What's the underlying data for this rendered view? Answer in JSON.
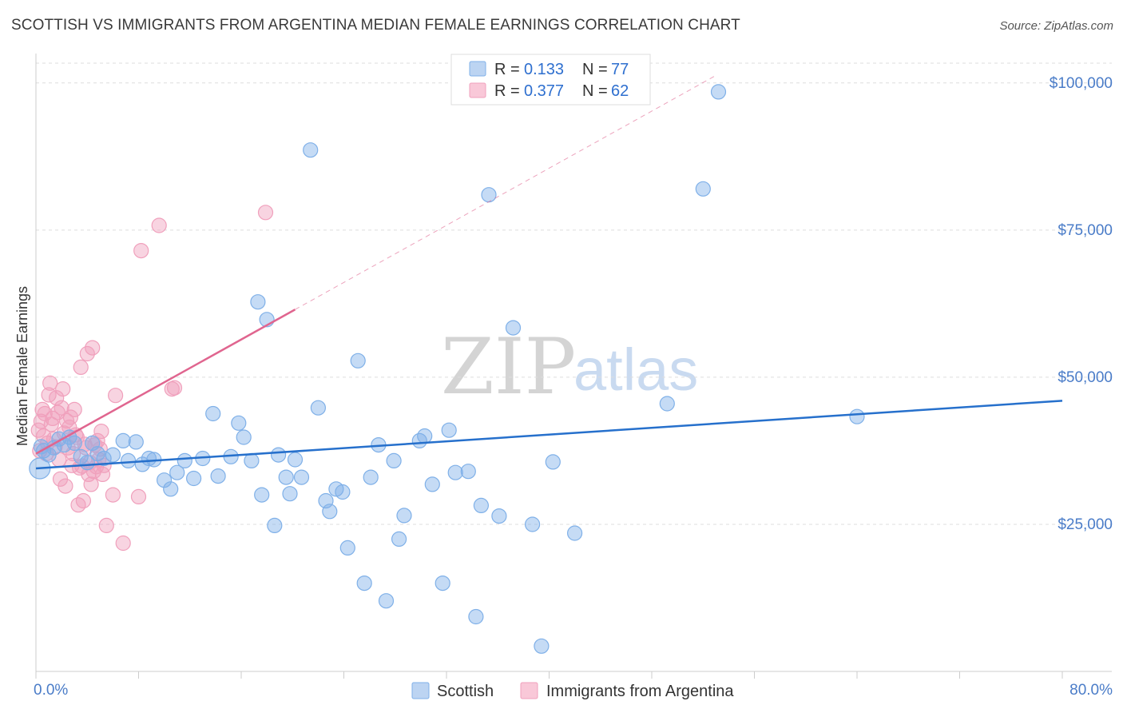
{
  "title": "SCOTTISH VS IMMIGRANTS FROM ARGENTINA MEDIAN FEMALE EARNINGS CORRELATION CHART",
  "source": "Source: ZipAtlas.com",
  "watermark": {
    "zip": "ZIP",
    "atlas": "atlas"
  },
  "colors": {
    "scottish": "#7fb0e8",
    "scottish_line": "#2670cc",
    "argentina": "#f0a0bc",
    "argentina_line": "#e0658f",
    "tick": "#4a7cc8",
    "grid": "#dddddd"
  },
  "legend": {
    "rows": [
      {
        "r_label": "R =",
        "r_value": "0.133",
        "n_label": "N =",
        "n_value": "77"
      },
      {
        "r_label": "R =",
        "r_value": "0.377",
        "n_label": "N =",
        "n_value": "62"
      }
    ]
  },
  "bottom_legend": [
    "Scottish",
    "Immigrants from Argentina"
  ],
  "chart_data": {
    "type": "scatter",
    "title": "SCOTTISH VS IMMIGRANTS FROM ARGENTINA MEDIAN FEMALE EARNINGS CORRELATION CHART",
    "xlabel": "",
    "ylabel": "Median Female Earnings",
    "xlim": [
      0,
      80
    ],
    "ylim": [
      0,
      105000
    ],
    "x_tick_labels": {
      "min": "0.0%",
      "max": "80.0%"
    },
    "y_ticks": [
      {
        "value": 25000,
        "label": "$25,000"
      },
      {
        "value": 50000,
        "label": "$50,000"
      },
      {
        "value": 75000,
        "label": "$75,000"
      },
      {
        "value": 100000,
        "label": "$100,000"
      }
    ],
    "series": [
      {
        "name": "Scottish",
        "r": 0.133,
        "n": 77,
        "trend": {
          "x0": 0,
          "y0": 34500,
          "x1": 80,
          "y1": 46000,
          "dashed_to_x": null
        },
        "points": [
          [
            0.3,
            34500
          ],
          [
            0.6,
            37500
          ],
          [
            1.0,
            36800
          ],
          [
            1.4,
            38000
          ],
          [
            1.8,
            39500
          ],
          [
            2.2,
            38500
          ],
          [
            2.6,
            39800
          ],
          [
            3.0,
            38800
          ],
          [
            3.5,
            36500
          ],
          [
            4.0,
            35500
          ],
          [
            4.4,
            38800
          ],
          [
            4.8,
            37000
          ],
          [
            5.3,
            36200
          ],
          [
            6.0,
            36800
          ],
          [
            6.8,
            39200
          ],
          [
            7.2,
            35800
          ],
          [
            7.8,
            39000
          ],
          [
            8.3,
            35200
          ],
          [
            8.8,
            36200
          ],
          [
            9.2,
            36000
          ],
          [
            10.0,
            32500
          ],
          [
            10.5,
            31000
          ],
          [
            11.0,
            33800
          ],
          [
            11.6,
            35800
          ],
          [
            12.3,
            32800
          ],
          [
            13.0,
            36200
          ],
          [
            13.8,
            43800
          ],
          [
            14.2,
            33200
          ],
          [
            15.2,
            36500
          ],
          [
            15.8,
            42200
          ],
          [
            16.2,
            39800
          ],
          [
            16.8,
            35800
          ],
          [
            17.3,
            62800
          ],
          [
            17.6,
            30000
          ],
          [
            18.0,
            59800
          ],
          [
            18.6,
            24800
          ],
          [
            18.9,
            36800
          ],
          [
            19.5,
            33000
          ],
          [
            19.8,
            30200
          ],
          [
            20.2,
            36000
          ],
          [
            20.7,
            33000
          ],
          [
            21.4,
            88600
          ],
          [
            22.0,
            44800
          ],
          [
            22.6,
            29000
          ],
          [
            22.9,
            27200
          ],
          [
            23.4,
            31000
          ],
          [
            23.9,
            30500
          ],
          [
            24.3,
            21000
          ],
          [
            25.1,
            52800
          ],
          [
            25.6,
            15000
          ],
          [
            26.1,
            33000
          ],
          [
            26.7,
            38500
          ],
          [
            27.3,
            12000
          ],
          [
            27.9,
            35800
          ],
          [
            28.3,
            22500
          ],
          [
            28.7,
            26500
          ],
          [
            29.9,
            39200
          ],
          [
            30.3,
            40000
          ],
          [
            30.9,
            31800
          ],
          [
            31.7,
            15000
          ],
          [
            32.2,
            41000
          ],
          [
            32.7,
            33800
          ],
          [
            33.7,
            34000
          ],
          [
            34.3,
            9300
          ],
          [
            34.7,
            28200
          ],
          [
            35.3,
            81000
          ],
          [
            36.1,
            26400
          ],
          [
            37.2,
            58400
          ],
          [
            38.7,
            25000
          ],
          [
            39.4,
            4300
          ],
          [
            40.3,
            35600
          ],
          [
            42.0,
            23500
          ],
          [
            49.2,
            45500
          ],
          [
            52.0,
            82000
          ],
          [
            53.2,
            98500
          ],
          [
            64.0,
            43300
          ],
          [
            0.4,
            38200
          ]
        ]
      },
      {
        "name": "Immigrants from Argentina",
        "r": 0.377,
        "n": 62,
        "trend": {
          "x0": 0,
          "y0": 37000,
          "x1": 20.2,
          "y1": 61500,
          "dashed_to_x": 53.0
        },
        "points": [
          [
            0.2,
            41000
          ],
          [
            0.3,
            37500
          ],
          [
            0.4,
            42500
          ],
          [
            0.5,
            44500
          ],
          [
            0.6,
            40000
          ],
          [
            0.7,
            43800
          ],
          [
            0.8,
            37000
          ],
          [
            0.9,
            38800
          ],
          [
            1.0,
            47000
          ],
          [
            1.1,
            49000
          ],
          [
            1.2,
            42000
          ],
          [
            1.3,
            43000
          ],
          [
            1.4,
            39500
          ],
          [
            1.5,
            38200
          ],
          [
            1.6,
            46500
          ],
          [
            1.7,
            44000
          ],
          [
            1.8,
            36000
          ],
          [
            1.9,
            32700
          ],
          [
            2.0,
            44800
          ],
          [
            2.1,
            48000
          ],
          [
            2.2,
            40500
          ],
          [
            2.3,
            31500
          ],
          [
            2.4,
            42600
          ],
          [
            2.5,
            38000
          ],
          [
            2.6,
            41500
          ],
          [
            2.7,
            43200
          ],
          [
            2.8,
            35000
          ],
          [
            2.9,
            37000
          ],
          [
            3.0,
            44500
          ],
          [
            3.1,
            40200
          ],
          [
            3.2,
            39800
          ],
          [
            3.3,
            28300
          ],
          [
            3.4,
            34600
          ],
          [
            3.5,
            51700
          ],
          [
            3.6,
            34900
          ],
          [
            3.7,
            29000
          ],
          [
            3.8,
            38600
          ],
          [
            3.9,
            38000
          ],
          [
            4.0,
            54000
          ],
          [
            4.1,
            33500
          ],
          [
            4.2,
            35500
          ],
          [
            4.3,
            31800
          ],
          [
            4.4,
            55000
          ],
          [
            4.5,
            34000
          ],
          [
            4.6,
            38500
          ],
          [
            4.7,
            34800
          ],
          [
            4.8,
            39200
          ],
          [
            4.9,
            36000
          ],
          [
            5.0,
            37800
          ],
          [
            5.1,
            40800
          ],
          [
            5.2,
            33500
          ],
          [
            5.3,
            35000
          ],
          [
            5.5,
            24800
          ],
          [
            6.0,
            30000
          ],
          [
            6.2,
            46900
          ],
          [
            6.8,
            21800
          ],
          [
            8.0,
            29700
          ],
          [
            8.2,
            71500
          ],
          [
            9.6,
            75800
          ],
          [
            10.8,
            48200
          ],
          [
            17.9,
            78000
          ],
          [
            10.6,
            48000
          ]
        ]
      }
    ]
  }
}
